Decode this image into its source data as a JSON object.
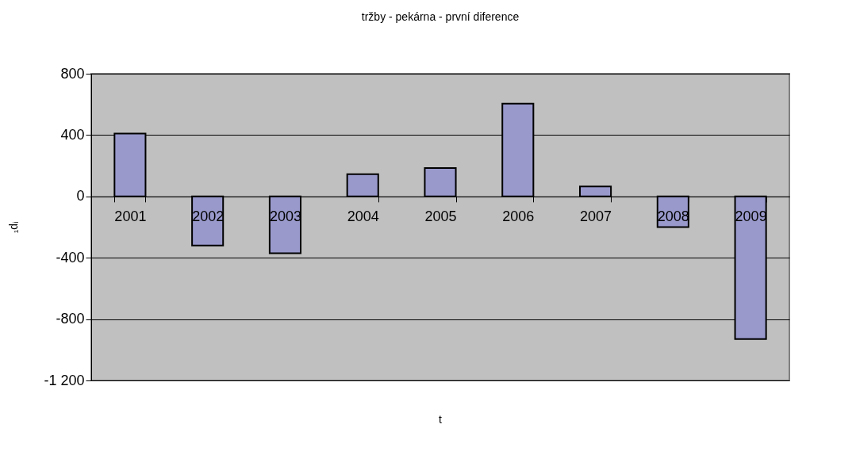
{
  "chart_data": {
    "type": "bar",
    "title": "tržby - pekárna - první diference",
    "xlabel": "t",
    "ylabel": "₁dᵢ",
    "categories": [
      "2001",
      "2002",
      "2003",
      "2004",
      "2005",
      "2006",
      "2007",
      "2008",
      "2009"
    ],
    "values": [
      410,
      -320,
      -370,
      145,
      185,
      605,
      65,
      -200,
      -930
    ],
    "color": "#9999cc",
    "ylim": [
      -1200,
      800
    ],
    "yticks": [
      {
        "value": -1200,
        "label": "-1 200"
      },
      -800,
      -400,
      0,
      400,
      800
    ],
    "grid": "y"
  }
}
